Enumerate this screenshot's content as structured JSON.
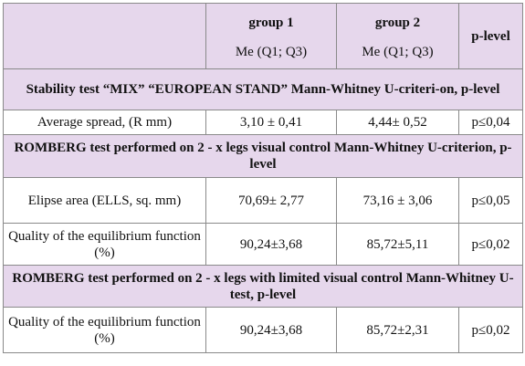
{
  "header": {
    "group1_title": "group 1",
    "group1_sub": "Me (Q1; Q3)",
    "group2_title": "group 2",
    "group2_sub": "Me (Q1; Q3)",
    "plevel": "p-level"
  },
  "sections": [
    {
      "title": "Stability test “MIX” “EUROPEAN STAND” Mann-Whitney U-criteri-on, p-level",
      "rows": [
        {
          "label": "Average spread, (R mm)",
          "g1": "3,10 ± 0,41",
          "g2": "4,44± 0,52",
          "p": "p≤0,04"
        }
      ]
    },
    {
      "title": "ROMBERG test performed on 2 - x legs visual control Mann-Whitney U-criterion, p-level",
      "rows": [
        {
          "label": "Elipse area (ELLS, sq. mm)",
          "g1": "70,69± 2,77",
          "g2": "73,16 ± 3,06",
          "p": "p≤0,05"
        },
        {
          "label": "Quality of the equilibrium function (%)",
          "g1": "90,24±3,68",
          "g2": "85,72±5,11",
          "p": "p≤0,02"
        }
      ]
    },
    {
      "title": "ROMBERG test performed on 2 - x legs with limited visual control Mann-Whitney U-test, p-level",
      "rows": [
        {
          "label": "Quality of the equilibrium function (%)",
          "g1": "90,24±3,68",
          "g2": "85,72±2,31",
          "p": "p≤0,02"
        }
      ]
    }
  ]
}
